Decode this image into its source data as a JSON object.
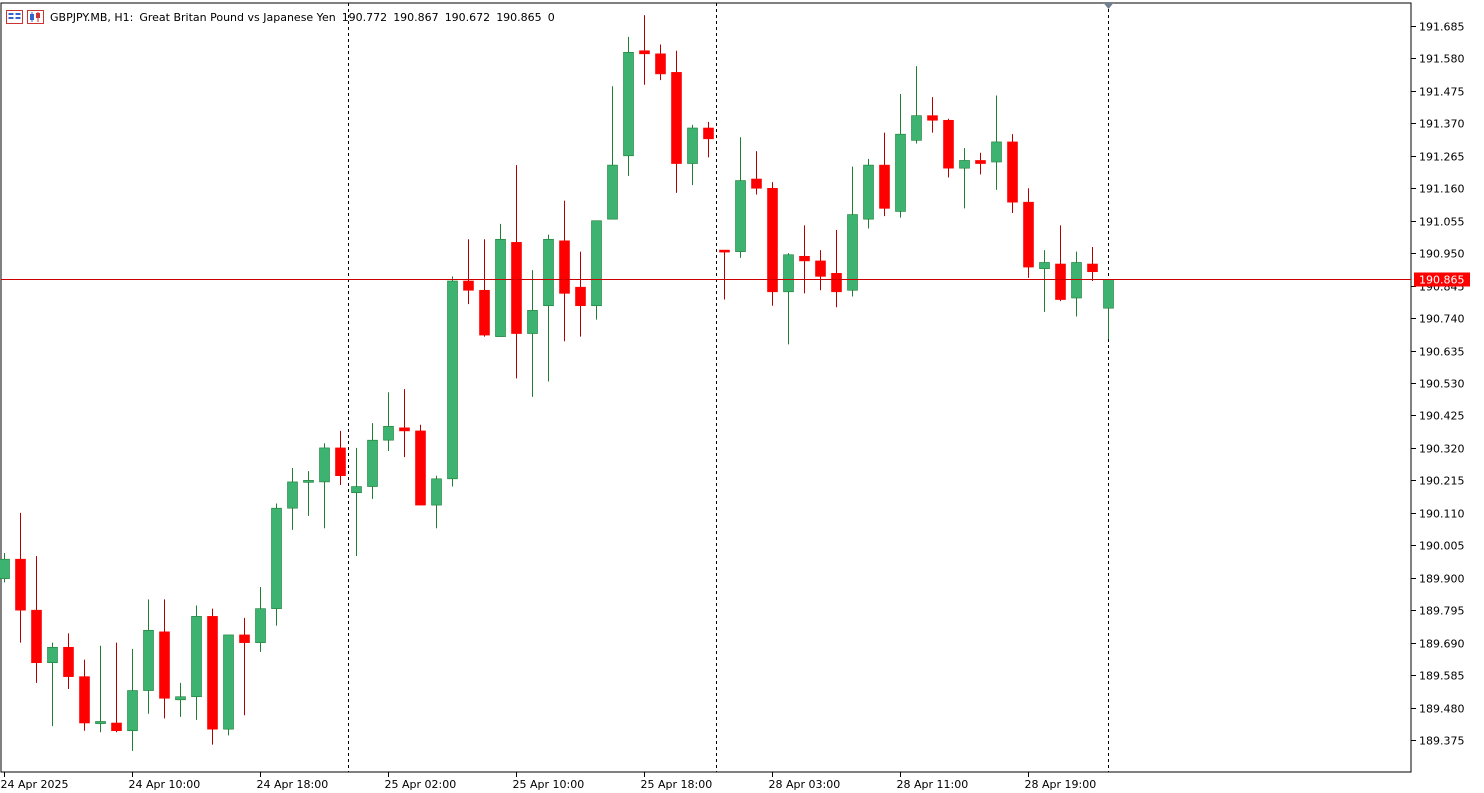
{
  "header": {
    "symbol": "GBPJPY.MB, H1:",
    "description": "Great Britan Pound vs Japanese Yen",
    "open": "190.772",
    "high": "190.867",
    "low": "190.672",
    "close": "190.865",
    "volume": "0"
  },
  "colors": {
    "bull": "#3cb371",
    "bear": "#ff0000",
    "wick_bull": "#1e7e34",
    "wick_bear": "#b30000",
    "price_line": "#cc0000",
    "axis": "#000000"
  },
  "chart_data": {
    "type": "candlestick",
    "ylim": [
      189.27,
      191.75
    ],
    "y_ticks": [
      "191.685",
      "191.580",
      "191.475",
      "191.370",
      "191.265",
      "191.160",
      "191.055",
      "190.950",
      "190.845",
      "190.740",
      "190.635",
      "190.530",
      "190.425",
      "190.320",
      "190.215",
      "190.110",
      "190.005",
      "189.900",
      "189.795",
      "189.690",
      "189.585",
      "189.480",
      "189.375"
    ],
    "x_labels": [
      {
        "bar": 0,
        "text": "24 Apr 2025"
      },
      {
        "bar": 8,
        "text": "24 Apr 10:00"
      },
      {
        "bar": 16,
        "text": "24 Apr 18:00"
      },
      {
        "bar": 24,
        "text": "25 Apr 02:00"
      },
      {
        "bar": 32,
        "text": "25 Apr 10:00"
      },
      {
        "bar": 40,
        "text": "25 Apr 18:00"
      },
      {
        "bar": 48,
        "text": "28 Apr 03:00"
      },
      {
        "bar": 56,
        "text": "28 Apr 11:00"
      },
      {
        "bar": 64,
        "text": "28 Apr 19:00"
      }
    ],
    "day_separators": [
      21.5,
      44.5
    ],
    "current_price": "190.865",
    "current_price_value": 190.865,
    "candles": [
      {
        "o": 189.897,
        "h": 189.98,
        "l": 189.885,
        "c": 189.96
      },
      {
        "o": 189.96,
        "h": 190.11,
        "l": 189.69,
        "c": 189.795
      },
      {
        "o": 189.795,
        "h": 189.97,
        "l": 189.56,
        "c": 189.625
      },
      {
        "o": 189.625,
        "h": 189.69,
        "l": 189.42,
        "c": 189.675
      },
      {
        "o": 189.675,
        "h": 189.72,
        "l": 189.54,
        "c": 189.58
      },
      {
        "o": 189.58,
        "h": 189.635,
        "l": 189.405,
        "c": 189.43
      },
      {
        "o": 189.428,
        "h": 189.68,
        "l": 189.4,
        "c": 189.435
      },
      {
        "o": 189.43,
        "h": 189.69,
        "l": 189.4,
        "c": 189.405
      },
      {
        "o": 189.405,
        "h": 189.67,
        "l": 189.34,
        "c": 189.535
      },
      {
        "o": 189.535,
        "h": 189.83,
        "l": 189.46,
        "c": 189.73
      },
      {
        "o": 189.725,
        "h": 189.83,
        "l": 189.445,
        "c": 189.51
      },
      {
        "o": 189.505,
        "h": 189.56,
        "l": 189.45,
        "c": 189.515
      },
      {
        "o": 189.515,
        "h": 189.81,
        "l": 189.44,
        "c": 189.775
      },
      {
        "o": 189.775,
        "h": 189.8,
        "l": 189.36,
        "c": 189.41
      },
      {
        "o": 189.41,
        "h": 189.715,
        "l": 189.39,
        "c": 189.715
      },
      {
        "o": 189.715,
        "h": 189.77,
        "l": 189.455,
        "c": 189.69
      },
      {
        "o": 189.69,
        "h": 189.87,
        "l": 189.66,
        "c": 189.8
      },
      {
        "o": 189.8,
        "h": 190.14,
        "l": 189.745,
        "c": 190.125
      },
      {
        "o": 190.125,
        "h": 190.255,
        "l": 190.055,
        "c": 190.21
      },
      {
        "o": 190.21,
        "h": 190.245,
        "l": 190.1,
        "c": 190.215
      },
      {
        "o": 190.21,
        "h": 190.335,
        "l": 190.06,
        "c": 190.32
      },
      {
        "o": 190.32,
        "h": 190.375,
        "l": 190.2,
        "c": 190.23
      },
      {
        "o": 190.175,
        "h": 190.32,
        "l": 189.97,
        "c": 190.195
      },
      {
        "o": 190.195,
        "h": 190.4,
        "l": 190.155,
        "c": 190.345
      },
      {
        "o": 190.345,
        "h": 190.5,
        "l": 190.31,
        "c": 190.39
      },
      {
        "o": 190.385,
        "h": 190.51,
        "l": 190.29,
        "c": 190.375
      },
      {
        "o": 190.375,
        "h": 190.395,
        "l": 190.135,
        "c": 190.135
      },
      {
        "o": 190.135,
        "h": 190.23,
        "l": 190.06,
        "c": 190.22
      },
      {
        "o": 190.22,
        "h": 190.875,
        "l": 190.195,
        "c": 190.86
      },
      {
        "o": 190.86,
        "h": 190.995,
        "l": 190.785,
        "c": 190.83
      },
      {
        "o": 190.83,
        "h": 190.995,
        "l": 190.68,
        "c": 190.685
      },
      {
        "o": 190.68,
        "h": 191.045,
        "l": 190.68,
        "c": 190.995
      },
      {
        "o": 190.985,
        "h": 191.235,
        "l": 190.545,
        "c": 190.69
      },
      {
        "o": 190.69,
        "h": 190.895,
        "l": 190.485,
        "c": 190.765
      },
      {
        "o": 190.78,
        "h": 191.01,
        "l": 190.535,
        "c": 190.995
      },
      {
        "o": 190.99,
        "h": 191.12,
        "l": 190.665,
        "c": 190.82
      },
      {
        "o": 190.84,
        "h": 190.955,
        "l": 190.68,
        "c": 190.78
      },
      {
        "o": 190.78,
        "h": 191.055,
        "l": 190.735,
        "c": 191.055
      },
      {
        "o": 191.06,
        "h": 191.49,
        "l": 191.06,
        "c": 191.235
      },
      {
        "o": 191.265,
        "h": 191.65,
        "l": 191.2,
        "c": 191.6
      },
      {
        "o": 191.605,
        "h": 191.72,
        "l": 191.495,
        "c": 191.595
      },
      {
        "o": 191.595,
        "h": 191.625,
        "l": 191.51,
        "c": 191.53
      },
      {
        "o": 191.535,
        "h": 191.605,
        "l": 191.145,
        "c": 191.24
      },
      {
        "o": 191.24,
        "h": 191.365,
        "l": 191.17,
        "c": 191.355
      },
      {
        "o": 191.355,
        "h": 191.375,
        "l": 191.26,
        "c": 191.32
      },
      {
        "o": 190.96,
        "h": 190.96,
        "l": 190.8,
        "c": 190.955
      },
      {
        "o": 190.955,
        "h": 191.325,
        "l": 190.935,
        "c": 191.185
      },
      {
        "o": 191.19,
        "h": 191.28,
        "l": 191.14,
        "c": 191.16
      },
      {
        "o": 191.16,
        "h": 191.18,
        "l": 190.78,
        "c": 190.825
      },
      {
        "o": 190.825,
        "h": 190.95,
        "l": 190.655,
        "c": 190.945
      },
      {
        "o": 190.94,
        "h": 191.04,
        "l": 190.82,
        "c": 190.925
      },
      {
        "o": 190.925,
        "h": 190.96,
        "l": 190.83,
        "c": 190.875
      },
      {
        "o": 190.885,
        "h": 191.025,
        "l": 190.775,
        "c": 190.825
      },
      {
        "o": 190.83,
        "h": 191.23,
        "l": 190.81,
        "c": 191.075
      },
      {
        "o": 191.06,
        "h": 191.255,
        "l": 191.03,
        "c": 191.235
      },
      {
        "o": 191.235,
        "h": 191.34,
        "l": 191.07,
        "c": 191.095
      },
      {
        "o": 191.085,
        "h": 191.465,
        "l": 191.065,
        "c": 191.335
      },
      {
        "o": 191.315,
        "h": 191.555,
        "l": 191.305,
        "c": 191.395
      },
      {
        "o": 191.395,
        "h": 191.455,
        "l": 191.34,
        "c": 191.38
      },
      {
        "o": 191.38,
        "h": 191.385,
        "l": 191.195,
        "c": 191.225
      },
      {
        "o": 191.225,
        "h": 191.29,
        "l": 191.095,
        "c": 191.25
      },
      {
        "o": 191.25,
        "h": 191.275,
        "l": 191.205,
        "c": 191.24
      },
      {
        "o": 191.245,
        "h": 191.46,
        "l": 191.155,
        "c": 191.31
      },
      {
        "o": 191.31,
        "h": 191.335,
        "l": 191.08,
        "c": 191.115
      },
      {
        "o": 191.115,
        "h": 191.16,
        "l": 190.87,
        "c": 190.905
      },
      {
        "o": 190.9,
        "h": 190.96,
        "l": 190.76,
        "c": 190.92
      },
      {
        "o": 190.915,
        "h": 191.04,
        "l": 190.795,
        "c": 190.8
      },
      {
        "o": 190.805,
        "h": 190.955,
        "l": 190.745,
        "c": 190.92
      },
      {
        "o": 190.915,
        "h": 190.97,
        "l": 190.86,
        "c": 190.89
      },
      {
        "o": 190.772,
        "h": 190.867,
        "l": 190.672,
        "c": 190.865
      }
    ]
  }
}
